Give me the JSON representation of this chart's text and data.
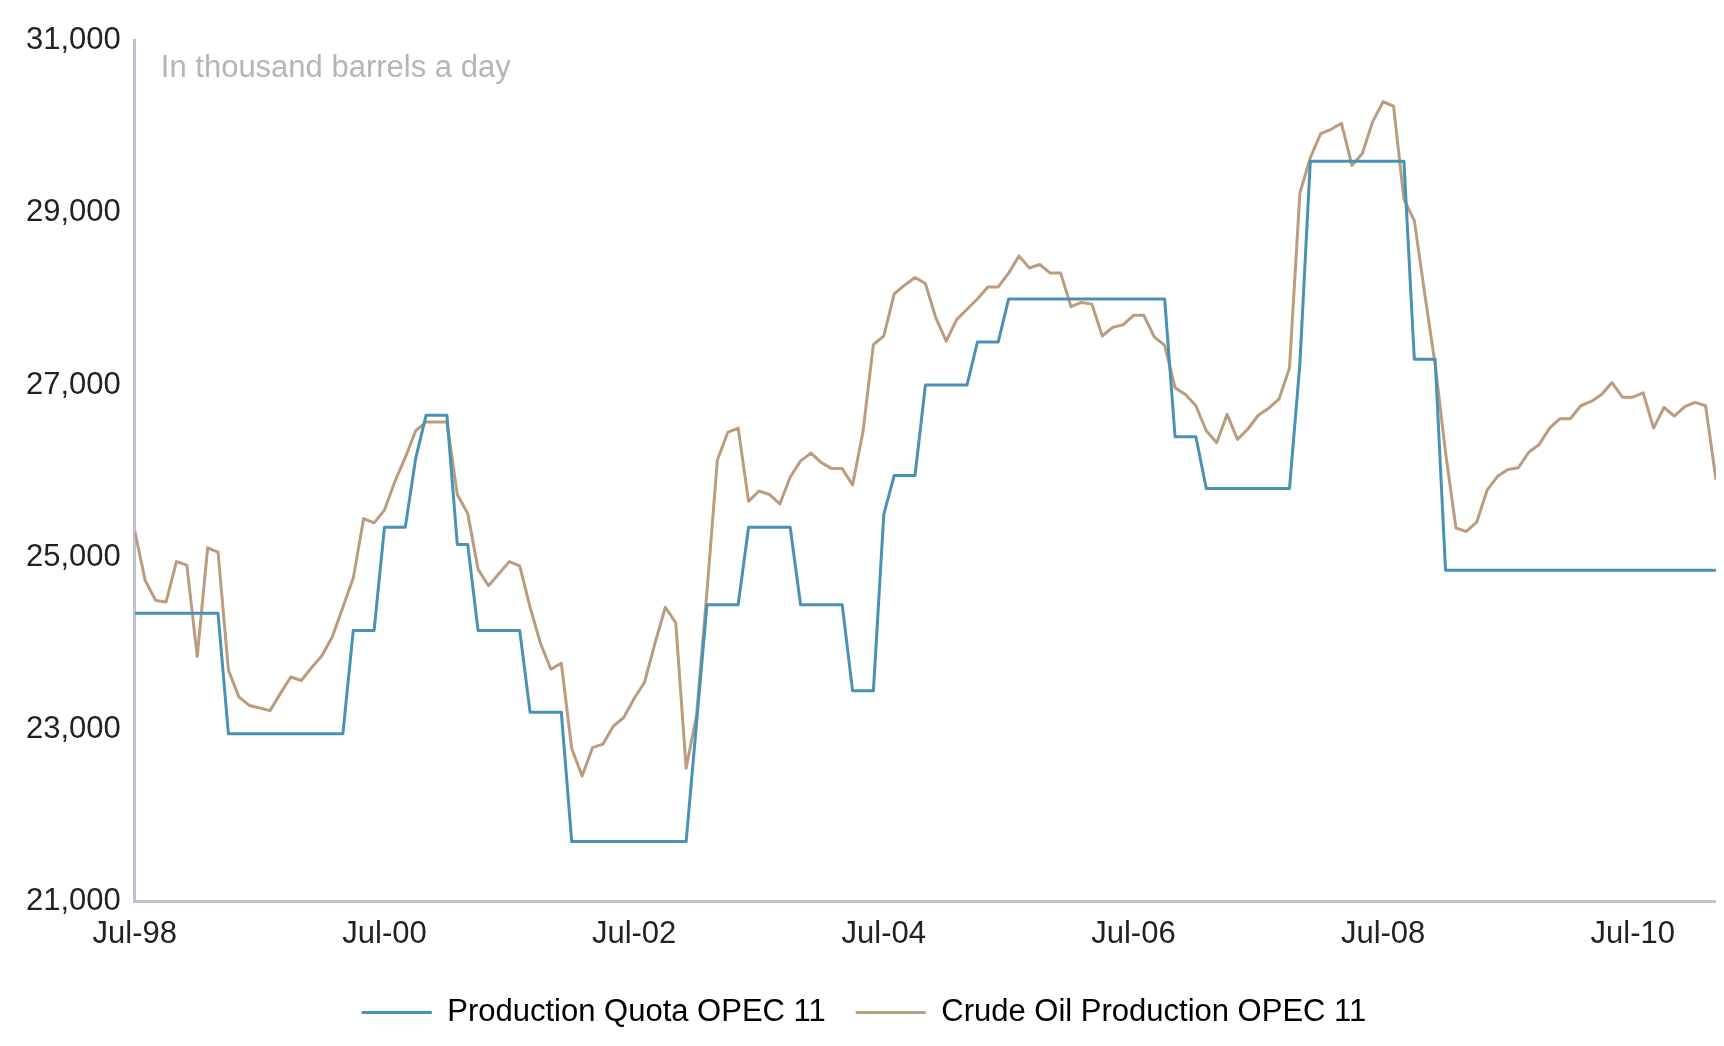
{
  "chart_data": {
    "type": "line",
    "annotations": [
      "In thousand barrels a day"
    ],
    "x": [
      "1998-07",
      "1998-08",
      "1998-09",
      "1998-10",
      "1998-11",
      "1998-12",
      "1999-01",
      "1999-02",
      "1999-03",
      "1999-04",
      "1999-05",
      "1999-06",
      "1999-07",
      "1999-08",
      "1999-09",
      "1999-10",
      "1999-11",
      "1999-12",
      "2000-01",
      "2000-02",
      "2000-03",
      "2000-04",
      "2000-05",
      "2000-06",
      "2000-07",
      "2000-08",
      "2000-09",
      "2000-10",
      "2000-11",
      "2000-12",
      "2001-01",
      "2001-02",
      "2001-03",
      "2001-04",
      "2001-05",
      "2001-06",
      "2001-07",
      "2001-08",
      "2001-09",
      "2001-10",
      "2001-11",
      "2001-12",
      "2002-01",
      "2002-02",
      "2002-03",
      "2002-04",
      "2002-05",
      "2002-06",
      "2002-07",
      "2002-08",
      "2002-09",
      "2002-10",
      "2002-11",
      "2002-12",
      "2003-01",
      "2003-02",
      "2003-03",
      "2003-04",
      "2003-05",
      "2003-06",
      "2003-07",
      "2003-08",
      "2003-09",
      "2003-10",
      "2003-11",
      "2003-12",
      "2004-01",
      "2004-02",
      "2004-03",
      "2004-04",
      "2004-05",
      "2004-06",
      "2004-07",
      "2004-08",
      "2004-09",
      "2004-10",
      "2004-11",
      "2004-12",
      "2005-01",
      "2005-02",
      "2005-03",
      "2005-04",
      "2005-05",
      "2005-06",
      "2005-07",
      "2005-08",
      "2005-09",
      "2005-10",
      "2005-11",
      "2005-12",
      "2006-01",
      "2006-02",
      "2006-03",
      "2006-04",
      "2006-05",
      "2006-06",
      "2006-07",
      "2006-08",
      "2006-09",
      "2006-10",
      "2006-11",
      "2006-12",
      "2007-01",
      "2007-02",
      "2007-03",
      "2007-04",
      "2007-05",
      "2007-06",
      "2007-07",
      "2007-08",
      "2007-09",
      "2007-10",
      "2007-11",
      "2007-12",
      "2008-01",
      "2008-02",
      "2008-03",
      "2008-04",
      "2008-05",
      "2008-06",
      "2008-07",
      "2008-08",
      "2008-09",
      "2008-10",
      "2008-11",
      "2008-12",
      "2009-01",
      "2009-02",
      "2009-03",
      "2009-04",
      "2009-05",
      "2009-06",
      "2009-07",
      "2009-08",
      "2009-09",
      "2009-10",
      "2009-11",
      "2009-12",
      "2010-01",
      "2010-02",
      "2010-03",
      "2010-04",
      "2010-05",
      "2010-06",
      "2010-07",
      "2010-08",
      "2010-09",
      "2010-10",
      "2010-11",
      "2010-12",
      "2011-01",
      "2011-02",
      "2011-03"
    ],
    "series": [
      {
        "name": "Production Quota OPEC 11",
        "color": "#4a92b4",
        "x": [
          "1998-07",
          "1999-03",
          "1999-04",
          "2000-03",
          "2000-04",
          "2000-06",
          "2000-07",
          "2000-09",
          "2000-10",
          "2000-11",
          "2001-01",
          "2001-02",
          "2001-03",
          "2001-04",
          "2001-08",
          "2001-09",
          "2001-12",
          "2002-01",
          "2002-12",
          "2003-02",
          "2003-05",
          "2003-06",
          "2003-10",
          "2003-11",
          "2004-03",
          "2004-04",
          "2004-06",
          "2004-07",
          "2004-08",
          "2004-10",
          "2004-11",
          "2005-03",
          "2005-04",
          "2005-06",
          "2005-07",
          "2006-10",
          "2006-11",
          "2007-01",
          "2007-02",
          "2007-10",
          "2007-11",
          "2007-12",
          "2008-09",
          "2008-10",
          "2008-12",
          "2009-01",
          "2011-03"
        ],
        "values": [
          24350,
          24350,
          22950,
          22950,
          24150,
          24150,
          25350,
          25350,
          26150,
          26650,
          26650,
          25150,
          25150,
          24150,
          24150,
          23200,
          23200,
          21700,
          21700,
          24450,
          24450,
          25350,
          25350,
          24450,
          24450,
          23450,
          23450,
          25500,
          25950,
          25950,
          27000,
          27000,
          27500,
          27500,
          28000,
          28000,
          26400,
          26400,
          25800,
          25800,
          27250,
          29600,
          29600,
          27300,
          27300,
          24850,
          24850
        ]
      },
      {
        "name": "Crude Oil Production OPEC 11",
        "color": "#bb9c7e",
        "values": [
          25300,
          24730,
          24500,
          24480,
          24950,
          24910,
          23850,
          25110,
          25060,
          23690,
          23380,
          23280,
          23250,
          23220,
          23420,
          23610,
          23570,
          23720,
          23860,
          24080,
          24420,
          24760,
          25450,
          25400,
          25550,
          25880,
          26160,
          26470,
          26570,
          26570,
          26570,
          25730,
          25510,
          24860,
          24670,
          24810,
          24950,
          24900,
          24420,
          24000,
          23700,
          23770,
          22780,
          22460,
          22790,
          22830,
          23040,
          23140,
          23360,
          23550,
          24000,
          24420,
          24240,
          22550,
          23170,
          24600,
          26130,
          26450,
          26500,
          25650,
          25770,
          25730,
          25620,
          25930,
          26120,
          26210,
          26100,
          26030,
          26030,
          25840,
          26460,
          27470,
          27570,
          28060,
          28160,
          28250,
          28180,
          27780,
          27510,
          27760,
          27880,
          28000,
          28140,
          28140,
          28300,
          28500,
          28360,
          28400,
          28300,
          28300,
          27910,
          27960,
          27940,
          27570,
          27670,
          27700,
          27810,
          27810,
          27560,
          27460,
          26970,
          26890,
          26760,
          26470,
          26330,
          26660,
          26370,
          26490,
          26650,
          26730,
          26840,
          27200,
          29230,
          29640,
          29920,
          29970,
          30040,
          29550,
          29690,
          30060,
          30290,
          30240,
          29160,
          28910,
          28060,
          27240,
          26220,
          25340,
          25300,
          25410,
          25780,
          25940,
          26020,
          26040,
          26220,
          26310,
          26500,
          26610,
          26610,
          26760,
          26810,
          26890,
          27030,
          26860,
          26860,
          26910,
          26500,
          26740,
          26640,
          26750,
          26800,
          26760,
          25900
        ]
      }
    ],
    "xlim": [
      "1998-07",
      "2011-03"
    ],
    "xticks": [
      {
        "value": "1998-07",
        "label": "Jul-98"
      },
      {
        "value": "2000-07",
        "label": "Jul-00"
      },
      {
        "value": "2002-07",
        "label": "Jul-02"
      },
      {
        "value": "2004-07",
        "label": "Jul-04"
      },
      {
        "value": "2006-07",
        "label": "Jul-06"
      },
      {
        "value": "2008-07",
        "label": "Jul-08"
      },
      {
        "value": "2010-07",
        "label": "Jul-10"
      }
    ],
    "ylim": [
      21000,
      31000
    ],
    "yticks": [
      {
        "value": 21000,
        "label": "21,000"
      },
      {
        "value": 23000,
        "label": "23,000"
      },
      {
        "value": 25000,
        "label": "25,000"
      },
      {
        "value": 27000,
        "label": "27,000"
      },
      {
        "value": 29000,
        "label": "29,000"
      },
      {
        "value": 31000,
        "label": "31,000"
      }
    ],
    "grid": false,
    "legend": "bottom",
    "marker": "none",
    "line_style": "solid"
  }
}
